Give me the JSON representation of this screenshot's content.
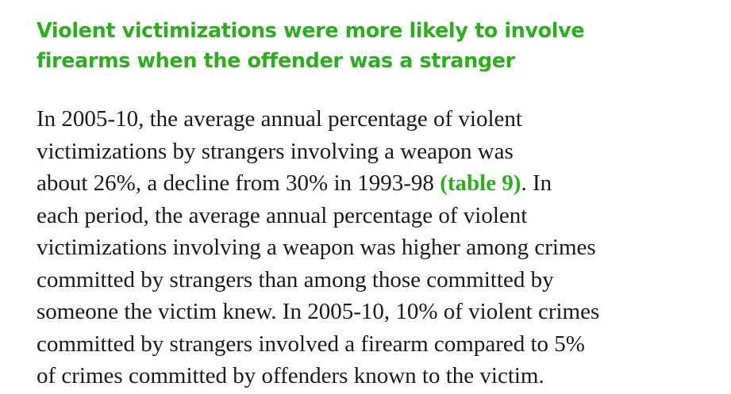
{
  "heading": {
    "lines": [
      "Violent victimizations were more likely to involve",
      "firearms when the offender was a stranger"
    ]
  },
  "paragraph": {
    "line1": "In 2005-10, the average annual percentage of violent",
    "line2": "victimizations by strangers involving a weapon was",
    "line3_before": "about 26%, a decline from 30% in 1993-98 ",
    "line3_link": "(table 9)",
    "line3_after": ". In",
    "line4": "each period, the average annual percentage of violent",
    "line5": "victimizations involving a weapon was higher among crimes",
    "line6": "committed by strangers than among those committed by",
    "line7": "someone the victim knew. In 2005-10, 10% of violent crimes",
    "line8": "committed by strangers involved a firearm compared to 5%",
    "line9": "of crimes committed by offenders known to the victim."
  },
  "colors": {
    "accent": "#2cae1e",
    "text": "#1a1a1a"
  }
}
